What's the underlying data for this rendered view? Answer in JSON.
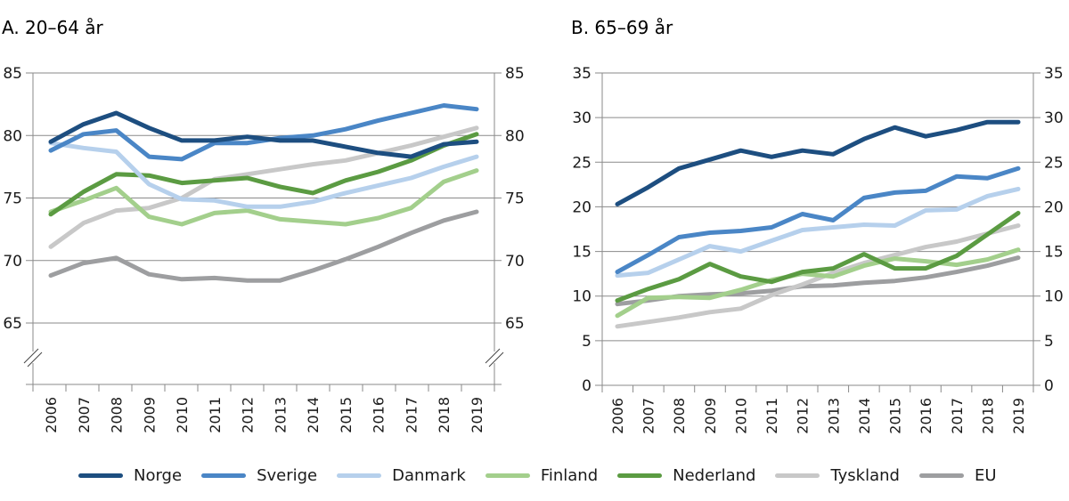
{
  "legend": [
    {
      "name": "Norge",
      "color": "#1d4e80"
    },
    {
      "name": "Sverige",
      "color": "#4a86c6"
    },
    {
      "name": "Danmark",
      "color": "#b6d0ec"
    },
    {
      "name": "Finland",
      "color": "#a3cf8c"
    },
    {
      "name": "Nederland",
      "color": "#5b9b42"
    },
    {
      "name": "Tyskland",
      "color": "#c8c8c8"
    },
    {
      "name": "EU",
      "color": "#9d9ea0"
    }
  ],
  "chart_data": [
    {
      "type": "line",
      "title": "A. 20–64 år",
      "xlabel": "",
      "ylabel": "",
      "x": [
        "2006",
        "2007",
        "2008",
        "2009",
        "2010",
        "2011",
        "2012",
        "2013",
        "2014",
        "2015",
        "2016",
        "2017",
        "2018",
        "2019"
      ],
      "ylim": [
        65,
        85
      ],
      "yticks": [
        "85",
        "80",
        "75",
        "70",
        "65"
      ],
      "axis_break": true,
      "grid": true,
      "dual_y_axis": true,
      "legend_position": "bottom",
      "series": [
        {
          "name": "Norge",
          "values": [
            79.5,
            80.9,
            81.8,
            80.6,
            79.6,
            79.6,
            79.9,
            79.6,
            79.6,
            79.1,
            78.6,
            78.3,
            79.3,
            79.5
          ]
        },
        {
          "name": "Sverige",
          "values": [
            78.8,
            80.1,
            80.4,
            78.3,
            78.1,
            79.4,
            79.4,
            79.8,
            80.0,
            80.5,
            81.2,
            81.8,
            82.4,
            82.1
          ]
        },
        {
          "name": "Danmark",
          "values": [
            79.4,
            79.0,
            78.7,
            76.1,
            74.9,
            74.8,
            74.3,
            74.3,
            74.7,
            75.4,
            76.0,
            76.6,
            77.5,
            78.3
          ]
        },
        {
          "name": "Finland",
          "values": [
            73.9,
            74.8,
            75.8,
            73.5,
            72.9,
            73.8,
            74.0,
            73.3,
            73.1,
            72.9,
            73.4,
            74.2,
            76.3,
            77.2
          ]
        },
        {
          "name": "Nederland",
          "values": [
            73.7,
            75.5,
            76.9,
            76.8,
            76.2,
            76.4,
            76.6,
            75.9,
            75.4,
            76.4,
            77.1,
            78.0,
            79.2,
            80.1
          ]
        },
        {
          "name": "Tyskland",
          "values": [
            71.1,
            73.0,
            74.0,
            74.2,
            75.0,
            76.5,
            76.9,
            77.3,
            77.7,
            78.0,
            78.6,
            79.2,
            79.9,
            80.6
          ]
        },
        {
          "name": "EU",
          "values": [
            68.8,
            69.8,
            70.2,
            68.9,
            68.5,
            68.6,
            68.4,
            68.4,
            69.2,
            70.1,
            71.1,
            72.2,
            73.2,
            73.9
          ]
        }
      ]
    },
    {
      "type": "line",
      "title": "B. 65–69 år",
      "xlabel": "",
      "ylabel": "",
      "x": [
        "2006",
        "2007",
        "2008",
        "2009",
        "2010",
        "2011",
        "2012",
        "2013",
        "2014",
        "2015",
        "2016",
        "2017",
        "2018",
        "2019"
      ],
      "ylim": [
        0,
        35
      ],
      "yticks": [
        "35",
        "30",
        "25",
        "20",
        "15",
        "10",
        "5",
        "0"
      ],
      "axis_break": false,
      "grid": true,
      "dual_y_axis": true,
      "legend_position": "bottom",
      "series": [
        {
          "name": "Norge",
          "values": [
            20.3,
            22.2,
            24.3,
            25.3,
            26.3,
            25.6,
            26.3,
            25.9,
            27.6,
            28.9,
            27.9,
            28.6,
            29.5,
            29.5
          ]
        },
        {
          "name": "Sverige",
          "values": [
            12.7,
            14.6,
            16.6,
            17.1,
            17.3,
            17.7,
            19.2,
            18.5,
            21.0,
            21.6,
            21.8,
            23.4,
            23.2,
            24.3
          ]
        },
        {
          "name": "Danmark",
          "values": [
            12.3,
            12.6,
            14.1,
            15.6,
            15.0,
            16.2,
            17.4,
            17.7,
            18.0,
            17.9,
            19.6,
            19.7,
            21.2,
            22.0
          ]
        },
        {
          "name": "Finland",
          "values": [
            7.8,
            9.8,
            9.9,
            9.8,
            10.7,
            11.8,
            12.5,
            12.2,
            13.4,
            14.2,
            13.9,
            13.5,
            14.1,
            15.2
          ]
        },
        {
          "name": "Nederland",
          "values": [
            9.5,
            10.8,
            11.9,
            13.6,
            12.2,
            11.6,
            12.7,
            13.1,
            14.7,
            13.1,
            13.1,
            14.5,
            16.9,
            19.3
          ]
        },
        {
          "name": "Tyskland",
          "values": [
            6.6,
            7.1,
            7.6,
            8.2,
            8.6,
            10.1,
            11.3,
            12.6,
            13.7,
            14.6,
            15.5,
            16.1,
            17.0,
            17.9
          ]
        },
        {
          "name": "EU",
          "values": [
            9.1,
            9.5,
            10.0,
            10.2,
            10.3,
            10.6,
            11.1,
            11.2,
            11.5,
            11.7,
            12.1,
            12.7,
            13.4,
            14.3
          ]
        }
      ]
    }
  ]
}
